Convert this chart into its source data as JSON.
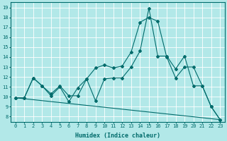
{
  "xlabel": "Humidex (Indice chaleur)",
  "bg_color": "#b2e8e8",
  "grid_color": "#ffffff",
  "line_color": "#006b6b",
  "xlim": [
    -0.5,
    23.5
  ],
  "ylim": [
    7.5,
    19.5
  ],
  "xticks": [
    0,
    1,
    2,
    3,
    4,
    5,
    6,
    7,
    8,
    9,
    10,
    11,
    12,
    13,
    14,
    15,
    16,
    17,
    18,
    19,
    20,
    21,
    22,
    23
  ],
  "yticks": [
    8,
    9,
    10,
    11,
    12,
    13,
    14,
    15,
    16,
    17,
    18,
    19
  ],
  "line1_x": [
    0,
    1,
    2,
    3,
    4,
    5,
    6,
    7,
    8,
    9,
    10,
    11,
    12,
    13,
    14,
    15,
    16,
    17,
    18,
    19,
    20,
    21,
    22,
    23
  ],
  "line1_y": [
    9.9,
    9.9,
    11.9,
    11.1,
    10.1,
    11.0,
    9.5,
    10.9,
    11.8,
    12.9,
    13.2,
    12.9,
    13.1,
    14.5,
    17.5,
    18.0,
    17.6,
    14.0,
    11.9,
    13.0,
    13.0,
    11.1,
    9.0,
    7.7
  ],
  "line2_x": [
    0,
    1,
    2,
    3,
    4,
    5,
    6,
    7,
    8,
    9,
    10,
    11,
    12,
    13,
    14,
    15,
    16,
    17,
    18,
    19,
    20,
    21,
    22,
    23
  ],
  "line2_y": [
    9.9,
    9.9,
    11.9,
    11.1,
    10.3,
    11.1,
    10.1,
    10.1,
    11.8,
    9.6,
    11.8,
    11.9,
    11.9,
    13.0,
    14.6,
    18.9,
    14.1,
    14.1,
    12.8,
    14.1,
    11.1,
    11.1,
    9.0,
    7.7
  ],
  "line3_x": [
    0,
    23
  ],
  "line3_y": [
    9.9,
    7.7
  ],
  "tick_fontsize": 5.0,
  "xlabel_fontsize": 6.0
}
